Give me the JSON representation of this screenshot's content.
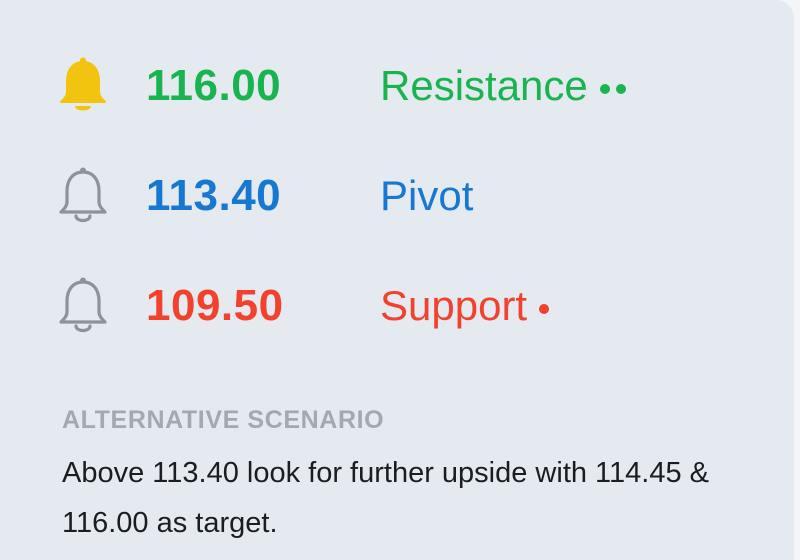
{
  "levels": [
    {
      "price": "116.00",
      "label": "Resistance",
      "dots": 2,
      "color": "#19b34f",
      "alert_active": true,
      "bell_color": "#f2c40f"
    },
    {
      "price": "113.40",
      "label": "Pivot",
      "dots": 0,
      "color": "#1678d0",
      "alert_active": false,
      "bell_color": "#8e929a"
    },
    {
      "price": "109.50",
      "label": "Support",
      "dots": 1,
      "color": "#f2412d",
      "alert_active": false,
      "bell_color": "#8e929a"
    }
  ],
  "scenario": {
    "heading": "ALTERNATIVE SCENARIO",
    "text": "Above 113.40 look for further upside with 114.45 & 116.00 as target."
  },
  "icons": {
    "alert": "bell-icon"
  }
}
